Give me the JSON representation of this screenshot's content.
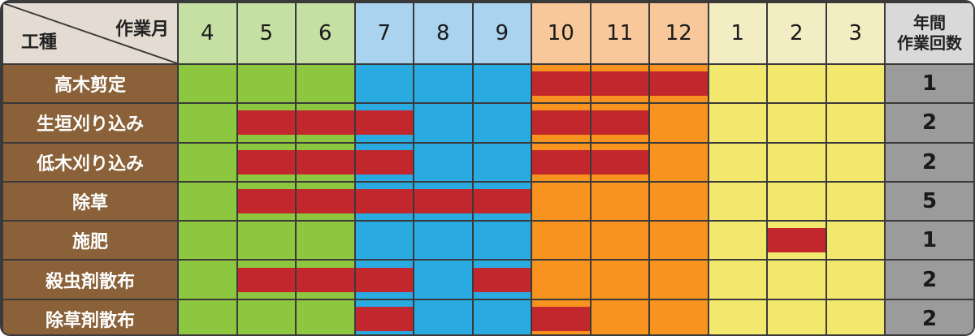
{
  "header": {
    "month_axis_label": "作業月",
    "work_type_label": "工種",
    "annual_count_label_line1": "年間",
    "annual_count_label_line2": "作業回数"
  },
  "months": [
    {
      "label": "4",
      "season": "spring"
    },
    {
      "label": "5",
      "season": "spring"
    },
    {
      "label": "6",
      "season": "spring"
    },
    {
      "label": "7",
      "season": "summer"
    },
    {
      "label": "8",
      "season": "summer"
    },
    {
      "label": "9",
      "season": "summer"
    },
    {
      "label": "10",
      "season": "autumn"
    },
    {
      "label": "11",
      "season": "autumn"
    },
    {
      "label": "12",
      "season": "autumn"
    },
    {
      "label": "1",
      "season": "winter"
    },
    {
      "label": "2",
      "season": "winter"
    },
    {
      "label": "3",
      "season": "winter"
    }
  ],
  "season_colors": {
    "spring": {
      "header": "#c6e0a4",
      "body": "#8dc63f"
    },
    "summer": {
      "header": "#a9d3ee",
      "body": "#29abe2"
    },
    "autumn": {
      "header": "#f9c89a",
      "body": "#f7931e"
    },
    "winter": {
      "header": "#f3edc4",
      "body": "#f2e86d"
    }
  },
  "work_bar_color": "#c1272d",
  "work_types": [
    {
      "name": "高木剪定",
      "scheduled": [
        false,
        false,
        false,
        false,
        false,
        false,
        true,
        true,
        true,
        false,
        false,
        false
      ],
      "annual_count": "1"
    },
    {
      "name": "生垣刈り込み",
      "scheduled": [
        false,
        true,
        true,
        true,
        false,
        false,
        true,
        true,
        false,
        false,
        false,
        false
      ],
      "annual_count": "2"
    },
    {
      "name": "低木刈り込み",
      "scheduled": [
        false,
        true,
        true,
        true,
        false,
        false,
        true,
        true,
        false,
        false,
        false,
        false
      ],
      "annual_count": "2"
    },
    {
      "name": "除草",
      "scheduled": [
        false,
        true,
        true,
        true,
        true,
        true,
        false,
        false,
        false,
        false,
        false,
        false
      ],
      "annual_count": "5"
    },
    {
      "name": "施肥",
      "scheduled": [
        false,
        false,
        false,
        false,
        false,
        false,
        false,
        false,
        false,
        false,
        true,
        false
      ],
      "annual_count": "1"
    },
    {
      "name": "殺虫剤散布",
      "scheduled": [
        false,
        true,
        true,
        true,
        false,
        true,
        false,
        false,
        false,
        false,
        false,
        false
      ],
      "annual_count": "2"
    },
    {
      "name": "除草剤散布",
      "scheduled": [
        false,
        false,
        false,
        true,
        false,
        false,
        true,
        false,
        false,
        false,
        false,
        false
      ],
      "annual_count": "2"
    }
  ]
}
